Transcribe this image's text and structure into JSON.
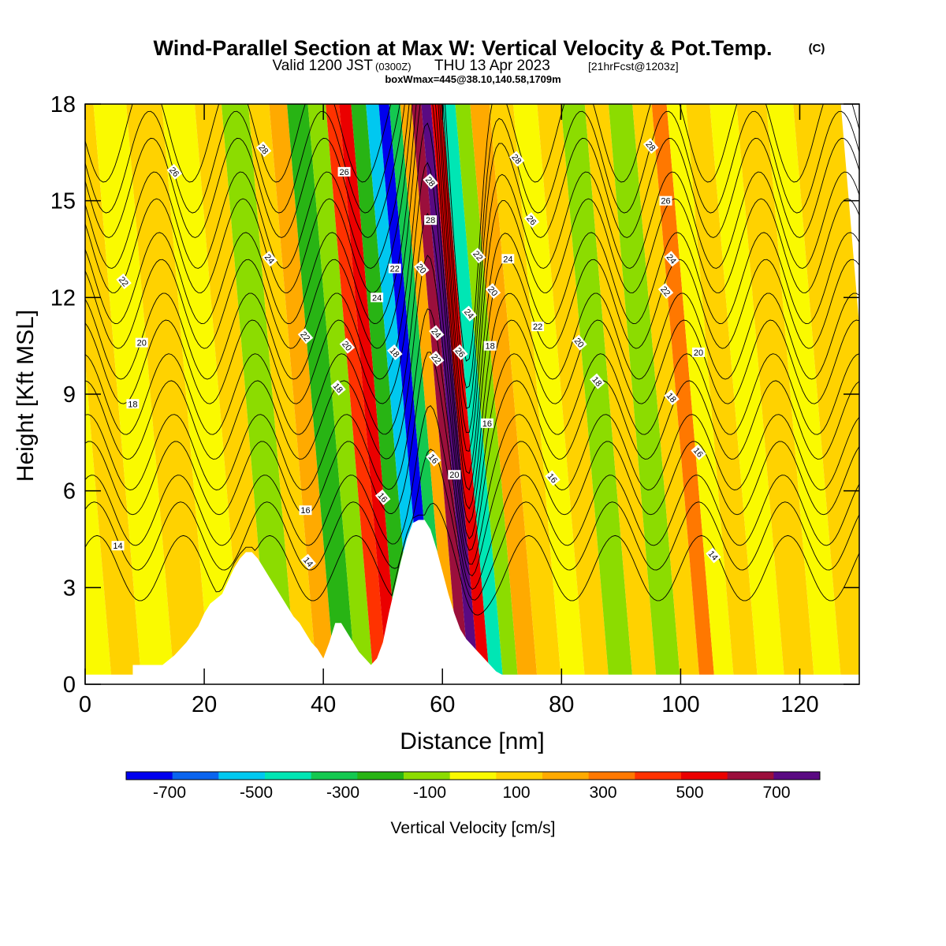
{
  "header": {
    "title": "Wind-Parallel Section at Max W: Vertical Velocity & Pot.Temp.",
    "copyright": "(C)",
    "valid_prefix": "Valid 1200 JST",
    "valid_utc": "(0300Z)",
    "valid_date": "THU 13 Apr 2023",
    "forecast": "[21hrFcst@1203z]",
    "boxline": "boxWmax=445@38.10,140.58,1709m"
  },
  "chart_data": {
    "type": "heatmap",
    "xlabel": "Distance [nm]",
    "ylabel": "Height [Kft MSL]",
    "xlim": [
      0,
      130
    ],
    "ylim": [
      0,
      18
    ],
    "xticks": [
      "0",
      "20",
      "40",
      "60",
      "80",
      "100",
      "120"
    ],
    "yticks": [
      "0",
      "3",
      "6",
      "9",
      "12",
      "15",
      "18"
    ],
    "colorbar": {
      "label": "Vertical Velocity [cm/s]",
      "tick_labels": [
        "-700",
        "-500",
        "-300",
        "-100",
        "100",
        "300",
        "500",
        "700"
      ],
      "levels": [
        -800,
        -700,
        -600,
        -500,
        -400,
        -300,
        -200,
        -100,
        0,
        100,
        200,
        300,
        400,
        500,
        600,
        700,
        800
      ],
      "colors": [
        "#0000ee",
        "#0a64ee",
        "#00c8f0",
        "#00e6b4",
        "#14c850",
        "#28b414",
        "#8cdc00",
        "#fafa00",
        "#ffd200",
        "#ffaa00",
        "#ff7800",
        "#ff3200",
        "#eb0000",
        "#9b0f3c",
        "#5a0a82"
      ]
    },
    "velocity_bands": [
      {
        "x": 2,
        "w": -100
      },
      {
        "x": 7,
        "w": 50
      },
      {
        "x": 12,
        "w": -100
      },
      {
        "x": 18,
        "w": 50
      },
      {
        "x": 24,
        "w": -100
      },
      {
        "x": 29,
        "w": 50
      },
      {
        "x": 33,
        "w": -150
      },
      {
        "x": 38,
        "w": 50
      },
      {
        "x": 40,
        "w": 120
      },
      {
        "x": 44,
        "w": -250
      },
      {
        "x": 47,
        "w": -120
      },
      {
        "x": 50,
        "w": 320
      },
      {
        "x": 51.5,
        "w": 480
      },
      {
        "x": 54,
        "w": -300
      },
      {
        "x": 56.5,
        "w": -550
      },
      {
        "x": 58.3,
        "w": -780
      },
      {
        "x": 60,
        "w": -350
      },
      {
        "x": 62,
        "w": 150
      },
      {
        "x": 63.8,
        "w": 520
      },
      {
        "x": 65.3,
        "w": 760
      },
      {
        "x": 67,
        "w": 400
      },
      {
        "x": 69,
        "w": -450
      },
      {
        "x": 71.5,
        "w": -150
      },
      {
        "x": 74,
        "w": 150
      },
      {
        "x": 78,
        "w": 50
      },
      {
        "x": 82,
        "w": -100
      },
      {
        "x": 86,
        "w": 50
      },
      {
        "x": 90,
        "w": -180
      },
      {
        "x": 94,
        "w": 80
      },
      {
        "x": 98,
        "w": -200
      },
      {
        "x": 102,
        "w": 60
      },
      {
        "x": 104.5,
        "w": 200
      },
      {
        "x": 107,
        "w": -100
      },
      {
        "x": 111,
        "w": 50
      },
      {
        "x": 115,
        "w": -100
      },
      {
        "x": 120,
        "w": 50
      },
      {
        "x": 125,
        "w": -80
      },
      {
        "x": 129,
        "w": 50
      }
    ],
    "terrain": [
      [
        0,
        0.3
      ],
      [
        8,
        0.3
      ],
      [
        8,
        0.6
      ],
      [
        13,
        0.6
      ],
      [
        15,
        0.9
      ],
      [
        17,
        1.3
      ],
      [
        19,
        1.8
      ],
      [
        20,
        2.2
      ],
      [
        21,
        2.5
      ],
      [
        23,
        2.8
      ],
      [
        24,
        3.2
      ],
      [
        25,
        3.6
      ],
      [
        26,
        3.9
      ],
      [
        27,
        4.1
      ],
      [
        28,
        4.1
      ],
      [
        29,
        3.9
      ],
      [
        30,
        3.6
      ],
      [
        31,
        3.3
      ],
      [
        32,
        3.0
      ],
      [
        33,
        2.7
      ],
      [
        34,
        2.4
      ],
      [
        35,
        2.1
      ],
      [
        36,
        1.9
      ],
      [
        37,
        1.6
      ],
      [
        38,
        1.3
      ],
      [
        39,
        1.1
      ],
      [
        40,
        0.8
      ],
      [
        41,
        1.3
      ],
      [
        42,
        1.9
      ],
      [
        43,
        1.9
      ],
      [
        44,
        1.6
      ],
      [
        45,
        1.3
      ],
      [
        46,
        1.0
      ],
      [
        47,
        0.8
      ],
      [
        48,
        0.6
      ],
      [
        49,
        0.8
      ],
      [
        50,
        1.3
      ],
      [
        51,
        2.2
      ],
      [
        52,
        3.0
      ],
      [
        53,
        3.8
      ],
      [
        54,
        4.5
      ],
      [
        55,
        5.0
      ],
      [
        56,
        5.1
      ],
      [
        57,
        5.1
      ],
      [
        58,
        4.8
      ],
      [
        59,
        4.2
      ],
      [
        60,
        3.5
      ],
      [
        61,
        2.8
      ],
      [
        62,
        2.2
      ],
      [
        63,
        1.7
      ],
      [
        64,
        1.4
      ],
      [
        65,
        1.2
      ],
      [
        66,
        1.0
      ],
      [
        67,
        0.8
      ],
      [
        68,
        0.6
      ],
      [
        69,
        0.4
      ],
      [
        70,
        0.3
      ],
      [
        130,
        0.3
      ]
    ],
    "isentropes": [
      14,
      16,
      18,
      20,
      22,
      24,
      26,
      28
    ],
    "contour_labels": [
      {
        "x": 5.5,
        "y": 4.3,
        "text": "14"
      },
      {
        "x": 37.5,
        "y": 3.8,
        "text": "14"
      },
      {
        "x": 105.5,
        "y": 4.0,
        "text": "14"
      },
      {
        "x": 37,
        "y": 5.4,
        "text": "16"
      },
      {
        "x": 50,
        "y": 5.8,
        "text": "16"
      },
      {
        "x": 58.5,
        "y": 7.0,
        "text": "16"
      },
      {
        "x": 67.5,
        "y": 8.1,
        "text": "16"
      },
      {
        "x": 78.5,
        "y": 6.4,
        "text": "16"
      },
      {
        "x": 103,
        "y": 7.2,
        "text": "16"
      },
      {
        "x": 8,
        "y": 8.7,
        "text": "18"
      },
      {
        "x": 42.5,
        "y": 9.2,
        "text": "18"
      },
      {
        "x": 52,
        "y": 10.3,
        "text": "18"
      },
      {
        "x": 68,
        "y": 10.5,
        "text": "18"
      },
      {
        "x": 86,
        "y": 9.4,
        "text": "18"
      },
      {
        "x": 98.5,
        "y": 8.9,
        "text": "18"
      },
      {
        "x": 9.5,
        "y": 10.6,
        "text": "20"
      },
      {
        "x": 44,
        "y": 10.5,
        "text": "20"
      },
      {
        "x": 56.5,
        "y": 12.9,
        "text": "20"
      },
      {
        "x": 62,
        "y": 6.5,
        "text": "20"
      },
      {
        "x": 68.5,
        "y": 12.2,
        "text": "20"
      },
      {
        "x": 83,
        "y": 10.6,
        "text": "20"
      },
      {
        "x": 103,
        "y": 10.3,
        "text": "20"
      },
      {
        "x": 6.5,
        "y": 12.5,
        "text": "22"
      },
      {
        "x": 37,
        "y": 10.8,
        "text": "22"
      },
      {
        "x": 52,
        "y": 12.9,
        "text": "22"
      },
      {
        "x": 59,
        "y": 10.1,
        "text": "22"
      },
      {
        "x": 66,
        "y": 13.3,
        "text": "22"
      },
      {
        "x": 76,
        "y": 11.1,
        "text": "22"
      },
      {
        "x": 97.5,
        "y": 12.2,
        "text": "22"
      },
      {
        "x": 31,
        "y": 13.2,
        "text": "24"
      },
      {
        "x": 49,
        "y": 12.0,
        "text": "24"
      },
      {
        "x": 59,
        "y": 10.9,
        "text": "24"
      },
      {
        "x": 64.5,
        "y": 11.5,
        "text": "24"
      },
      {
        "x": 71,
        "y": 13.2,
        "text": "24"
      },
      {
        "x": 98.5,
        "y": 13.2,
        "text": "24"
      },
      {
        "x": 15,
        "y": 15.9,
        "text": "26"
      },
      {
        "x": 43.5,
        "y": 15.9,
        "text": "26"
      },
      {
        "x": 63,
        "y": 10.3,
        "text": "26"
      },
      {
        "x": 75,
        "y": 14.4,
        "text": "26"
      },
      {
        "x": 97.5,
        "y": 15.0,
        "text": "26"
      },
      {
        "x": 30,
        "y": 16.6,
        "text": "28"
      },
      {
        "x": 58,
        "y": 15.6,
        "text": "28"
      },
      {
        "x": 58,
        "y": 14.4,
        "text": "28"
      },
      {
        "x": 72.5,
        "y": 16.3,
        "text": "28"
      },
      {
        "x": 95,
        "y": 16.7,
        "text": "28"
      }
    ]
  }
}
